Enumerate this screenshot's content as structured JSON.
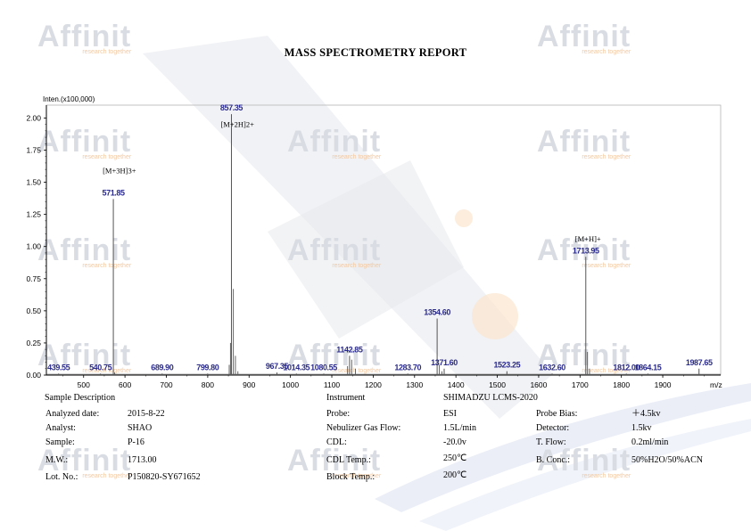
{
  "report": {
    "title": "MASS SPECTROMETRY REPORT"
  },
  "watermark": {
    "brand": "Affinit",
    "tagline": "research  together"
  },
  "chart_data": {
    "type": "line",
    "ylabel": "Inten.(x100,000)",
    "xlabel": "m/z",
    "xlim": [
      410,
      2040
    ],
    "ylim": [
      0,
      2.1
    ],
    "xticks": [
      500,
      600,
      700,
      800,
      900,
      1000,
      1100,
      1200,
      1300,
      1400,
      1500,
      1600,
      1700,
      1800,
      1900
    ],
    "yticks": [
      0.0,
      0.25,
      0.5,
      0.75,
      1.0,
      1.25,
      1.5,
      1.75,
      2.0
    ],
    "ytick_labels": [
      "0.00",
      "0.25",
      "0.50",
      "0.75",
      "1.00",
      "1.25",
      "1.50",
      "1.75",
      "2.00"
    ],
    "grid": false,
    "peaks": [
      {
        "mz": 439.55,
        "intensity": 0.012,
        "label": "439.55"
      },
      {
        "mz": 540.75,
        "intensity": 0.012,
        "label": "540.75"
      },
      {
        "mz": 571.85,
        "intensity": 1.37,
        "label": "571.85"
      },
      {
        "mz": 689.9,
        "intensity": 0.012,
        "label": "689.90"
      },
      {
        "mz": 799.8,
        "intensity": 0.012,
        "label": "799.80"
      },
      {
        "mz": 857.35,
        "intensity": 2.03,
        "label": "857.35"
      },
      {
        "mz": 967.35,
        "intensity": 0.02,
        "label": "967.35"
      },
      {
        "mz": 1014.35,
        "intensity": 0.012,
        "label": "1014.35"
      },
      {
        "mz": 1080.55,
        "intensity": 0.012,
        "label": "1080.55"
      },
      {
        "mz": 1142.85,
        "intensity": 0.15,
        "label": "1142.85"
      },
      {
        "mz": 1283.7,
        "intensity": 0.012,
        "label": "1283.70"
      },
      {
        "mz": 1354.6,
        "intensity": 0.44,
        "label": "1354.60"
      },
      {
        "mz": 1371.6,
        "intensity": 0.05,
        "label": "1371.60"
      },
      {
        "mz": 1523.25,
        "intensity": 0.03,
        "label": "1523.25"
      },
      {
        "mz": 1632.6,
        "intensity": 0.012,
        "label": "1632.60"
      },
      {
        "mz": 1713.95,
        "intensity": 0.92,
        "label": "1713.95"
      },
      {
        "mz": 1812.0,
        "intensity": 0.012,
        "label": "1812.00"
      },
      {
        "mz": 1864.15,
        "intensity": 0.012,
        "label": "1864.15"
      },
      {
        "mz": 1987.65,
        "intensity": 0.05,
        "label": "1987.65"
      }
    ],
    "minor_peaks": [
      {
        "mz": 575,
        "intensity": 0.02
      },
      {
        "mz": 852,
        "intensity": 0.08
      },
      {
        "mz": 855,
        "intensity": 0.25
      },
      {
        "mz": 862,
        "intensity": 0.67
      },
      {
        "mz": 867,
        "intensity": 0.15
      },
      {
        "mz": 873,
        "intensity": 0.03
      },
      {
        "mz": 1138,
        "intensity": 0.07
      },
      {
        "mz": 1148,
        "intensity": 0.12
      },
      {
        "mz": 1157,
        "intensity": 0.05
      },
      {
        "mz": 1360,
        "intensity": 0.08
      },
      {
        "mz": 1366,
        "intensity": 0.03
      },
      {
        "mz": 1718,
        "intensity": 0.18
      },
      {
        "mz": 1723,
        "intensity": 0.05
      }
    ],
    "annotations": [
      {
        "mz": 571.85,
        "text": "[M+3H]3+",
        "y": 1.57
      },
      {
        "mz": 857.35,
        "text": "[M+2H]2+",
        "y": 1.93
      },
      {
        "mz": 1713.95,
        "text": "[M+H]+",
        "y": 1.04
      }
    ],
    "colors": {
      "peak": "#555555",
      "label": "#2b2b8c",
      "axis": "#000000"
    }
  },
  "sample": {
    "header": "Sample Description",
    "rows": [
      {
        "label": "Analyzed date:",
        "value": "2015-8-22"
      },
      {
        "label": "Analyst:",
        "value": "SHAO"
      },
      {
        "label": "Sample:",
        "value": "P-16"
      },
      {
        "label": "M.W.:",
        "value": "1713.00"
      },
      {
        "label": "Lot. No.:",
        "value": "P150820-SY671652"
      }
    ]
  },
  "instrument": {
    "header": "Instrument",
    "model": "SHIMADZU LCMS-2020",
    "rows": [
      {
        "label": "Probe:",
        "value": "ESI"
      },
      {
        "label": "Nebulizer Gas Flow:",
        "value": "1.5L/min"
      },
      {
        "label": "CDL:",
        "value": "-20.0v"
      },
      {
        "label": "CDL Temp.:",
        "value": "250℃"
      },
      {
        "label": "Block Temp.:",
        "value": "200℃"
      }
    ]
  },
  "detector": {
    "rows": [
      {
        "label": "Probe Bias:",
        "value": "＋4.5kv"
      },
      {
        "label": "Detector:",
        "value": "1.5kv"
      },
      {
        "label": "T. Flow:",
        "value": "0.2ml/min"
      },
      {
        "label": "B. Conc.:",
        "value": "50%H2O/50%ACN"
      }
    ]
  }
}
